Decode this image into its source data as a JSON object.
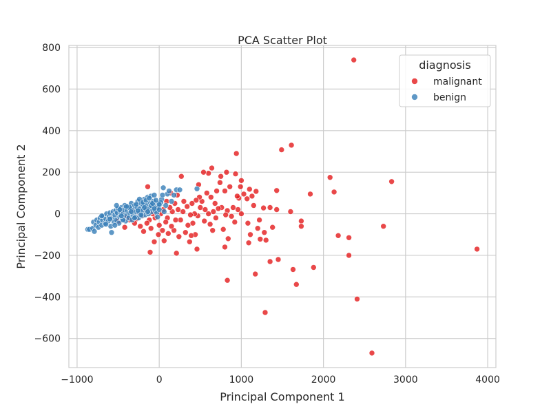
{
  "chart_data": {
    "type": "scatter",
    "title": "PCA Scatter Plot",
    "xlabel": "Principal Component 1",
    "ylabel": "Principal Component 2",
    "xlim": [
      -1100,
      4100
    ],
    "ylim": [
      -740,
      810
    ],
    "x_ticks": [
      -1000,
      0,
      1000,
      2000,
      3000,
      4000
    ],
    "y_ticks": [
      -600,
      -400,
      -200,
      0,
      200,
      400,
      600,
      800
    ],
    "x_tick_labels": [
      "−1000",
      "0",
      "1000",
      "2000",
      "3000",
      "4000"
    ],
    "y_tick_labels": [
      "−600",
      "−400",
      "−200",
      "0",
      "200",
      "400",
      "600",
      "800"
    ],
    "grid": true,
    "legend": {
      "title": "diagnosis",
      "placement": "top-right",
      "entries": [
        {
          "label": "malignant",
          "color": "#e41a1c"
        },
        {
          "label": "benign",
          "color": "#377eb8"
        }
      ]
    },
    "series": [
      {
        "name": "malignant",
        "color": "#e41a1c",
        "points": [
          [
            2370,
            740
          ],
          [
            2590,
            -670
          ],
          [
            3870,
            -170
          ],
          [
            2830,
            155
          ],
          [
            2730,
            -60
          ],
          [
            2410,
            -410
          ],
          [
            2310,
            -200
          ],
          [
            2310,
            -115
          ],
          [
            2180,
            -105
          ],
          [
            2130,
            105
          ],
          [
            2080,
            175
          ],
          [
            1880,
            -258
          ],
          [
            1840,
            95
          ],
          [
            1730,
            -35
          ],
          [
            1730,
            -60
          ],
          [
            1670,
            -340
          ],
          [
            1630,
            -268
          ],
          [
            1610,
            330
          ],
          [
            1600,
            10
          ],
          [
            1490,
            308
          ],
          [
            1450,
            -220
          ],
          [
            1430,
            112
          ],
          [
            1430,
            20
          ],
          [
            1380,
            -65
          ],
          [
            1350,
            -230
          ],
          [
            1350,
            30
          ],
          [
            1300,
            -127
          ],
          [
            1290,
            -475
          ],
          [
            1280,
            -90
          ],
          [
            1270,
            28
          ],
          [
            1230,
            -122
          ],
          [
            1220,
            -30
          ],
          [
            1200,
            -70
          ],
          [
            1180,
            108
          ],
          [
            1170,
            -290
          ],
          [
            1150,
            40
          ],
          [
            1130,
            85
          ],
          [
            1110,
            -100
          ],
          [
            1100,
            118
          ],
          [
            1090,
            -140
          ],
          [
            1080,
            -45
          ],
          [
            1070,
            72
          ],
          [
            1030,
            95
          ],
          [
            1000,
            0
          ],
          [
            1000,
            160
          ],
          [
            990,
            130
          ],
          [
            970,
            75
          ],
          [
            960,
            20
          ],
          [
            950,
            85
          ],
          [
            940,
            290
          ],
          [
            930,
            192
          ],
          [
            920,
            -40
          ],
          [
            900,
            30
          ],
          [
            880,
            -12
          ],
          [
            860,
            130
          ],
          [
            840,
            -120
          ],
          [
            830,
            -320
          ],
          [
            830,
            15
          ],
          [
            820,
            200
          ],
          [
            810,
            -5
          ],
          [
            800,
            -160
          ],
          [
            800,
            110
          ],
          [
            780,
            -75
          ],
          [
            760,
            30
          ],
          [
            750,
            180
          ],
          [
            740,
            150
          ],
          [
            720,
            25
          ],
          [
            700,
            110
          ],
          [
            690,
            -20
          ],
          [
            680,
            50
          ],
          [
            660,
            10
          ],
          [
            650,
            -80
          ],
          [
            640,
            220
          ],
          [
            630,
            80
          ],
          [
            620,
            -50
          ],
          [
            600,
            195
          ],
          [
            600,
            0
          ],
          [
            580,
            100
          ],
          [
            560,
            20
          ],
          [
            550,
            -35
          ],
          [
            540,
            200
          ],
          [
            520,
            60
          ],
          [
            500,
            30
          ],
          [
            490,
            80
          ],
          [
            480,
            140
          ],
          [
            470,
            -10
          ],
          [
            460,
            -170
          ],
          [
            450,
            65
          ],
          [
            440,
            -100
          ],
          [
            430,
            0
          ],
          [
            410,
            -45
          ],
          [
            400,
            50
          ],
          [
            390,
            -105
          ],
          [
            380,
            -5
          ],
          [
            370,
            -135
          ],
          [
            350,
            -55
          ],
          [
            340,
            35
          ],
          [
            320,
            -90
          ],
          [
            300,
            60
          ],
          [
            290,
            10
          ],
          [
            270,
            180
          ],
          [
            260,
            -30
          ],
          [
            240,
            -110
          ],
          [
            230,
            20
          ],
          [
            220,
            90
          ],
          [
            210,
            -190
          ],
          [
            200,
            -30
          ],
          [
            190,
            50
          ],
          [
            180,
            -80
          ],
          [
            160,
            10
          ],
          [
            150,
            -60
          ],
          [
            140,
            100
          ],
          [
            130,
            30
          ],
          [
            110,
            -95
          ],
          [
            100,
            -20
          ],
          [
            90,
            60
          ],
          [
            80,
            -40
          ],
          [
            60,
            -130
          ],
          [
            50,
            20
          ],
          [
            40,
            -80
          ],
          [
            20,
            0
          ],
          [
            0,
            -55
          ],
          [
            -10,
            -100
          ],
          [
            -30,
            30
          ],
          [
            -50,
            -20
          ],
          [
            -60,
            -135
          ],
          [
            -80,
            0
          ],
          [
            -100,
            -70
          ],
          [
            -110,
            -185
          ],
          [
            -120,
            -30
          ],
          [
            -140,
            130
          ],
          [
            -150,
            -45
          ],
          [
            -170,
            20
          ],
          [
            -190,
            -85
          ],
          [
            -200,
            -10
          ],
          [
            -230,
            -60
          ],
          [
            -250,
            0
          ],
          [
            -280,
            -25
          ],
          [
            -300,
            -45
          ],
          [
            -330,
            15
          ],
          [
            -360,
            -30
          ],
          [
            -400,
            -20
          ],
          [
            -420,
            -65
          ],
          [
            -460,
            10
          ],
          [
            -500,
            -35
          ]
        ]
      },
      {
        "name": "benign",
        "color": "#377eb8",
        "points": [
          [
            -870,
            -75
          ],
          [
            -850,
            -75
          ],
          [
            -810,
            -70
          ],
          [
            -800,
            -40
          ],
          [
            -790,
            -85
          ],
          [
            -770,
            -55
          ],
          [
            -760,
            -30
          ],
          [
            -740,
            -65
          ],
          [
            -730,
            -40
          ],
          [
            -720,
            -20
          ],
          [
            -700,
            -55
          ],
          [
            -690,
            -30
          ],
          [
            -680,
            -10
          ],
          [
            -660,
            -45
          ],
          [
            -650,
            -25
          ],
          [
            -640,
            0
          ],
          [
            -620,
            -35
          ],
          [
            -610,
            -15
          ],
          [
            -600,
            5
          ],
          [
            -590,
            -60
          ],
          [
            -580,
            -90
          ],
          [
            -570,
            -20
          ],
          [
            -560,
            10
          ],
          [
            -550,
            -40
          ],
          [
            -540,
            -5
          ],
          [
            -530,
            15
          ],
          [
            -520,
            -30
          ],
          [
            -510,
            5
          ],
          [
            -500,
            25
          ],
          [
            -490,
            -45
          ],
          [
            -480,
            -15
          ],
          [
            -470,
            10
          ],
          [
            -460,
            30
          ],
          [
            -450,
            -25
          ],
          [
            -440,
            0
          ],
          [
            -430,
            20
          ],
          [
            -420,
            40
          ],
          [
            -410,
            -35
          ],
          [
            -400,
            -10
          ],
          [
            -390,
            15
          ],
          [
            -380,
            35
          ],
          [
            -370,
            -20
          ],
          [
            -360,
            5
          ],
          [
            -350,
            25
          ],
          [
            -340,
            50
          ],
          [
            -330,
            -30
          ],
          [
            -320,
            -5
          ],
          [
            -310,
            20
          ],
          [
            -300,
            40
          ],
          [
            -290,
            -15
          ],
          [
            -280,
            10
          ],
          [
            -270,
            30
          ],
          [
            -260,
            60
          ],
          [
            -250,
            -20
          ],
          [
            -240,
            5
          ],
          [
            -230,
            25
          ],
          [
            -220,
            50
          ],
          [
            -210,
            -10
          ],
          [
            -200,
            15
          ],
          [
            -190,
            40
          ],
          [
            -180,
            70
          ],
          [
            -170,
            -5
          ],
          [
            -160,
            20
          ],
          [
            -150,
            45
          ],
          [
            -140,
            80
          ],
          [
            -130,
            0
          ],
          [
            -120,
            25
          ],
          [
            -110,
            55
          ],
          [
            -100,
            85
          ],
          [
            -90,
            10
          ],
          [
            -80,
            35
          ],
          [
            -70,
            60
          ],
          [
            -60,
            90
          ],
          [
            -50,
            15
          ],
          [
            -40,
            40
          ],
          [
            -30,
            5
          ],
          [
            -20,
            30
          ],
          [
            -10,
            50
          ],
          [
            0,
            20
          ],
          [
            10,
            45
          ],
          [
            30,
            70
          ],
          [
            50,
            125
          ],
          [
            60,
            10
          ],
          [
            80,
            40
          ],
          [
            100,
            95
          ],
          [
            120,
            110
          ],
          [
            150,
            60
          ],
          [
            180,
            90
          ],
          [
            210,
            115
          ],
          [
            250,
            115
          ],
          [
            460,
            120
          ],
          [
            -600,
            -25
          ],
          [
            -540,
            -55
          ],
          [
            -480,
            20
          ],
          [
            -440,
            -30
          ],
          [
            -360,
            30
          ],
          [
            -300,
            -20
          ],
          [
            -260,
            15
          ],
          [
            -220,
            -5
          ],
          [
            -180,
            30
          ],
          [
            -140,
            10
          ],
          [
            -100,
            40
          ],
          [
            -60,
            25
          ],
          [
            -20,
            -15
          ],
          [
            20,
            55
          ],
          [
            -650,
            -50
          ],
          [
            -700,
            -10
          ],
          [
            -520,
            40
          ],
          [
            -460,
            -10
          ],
          [
            -400,
            35
          ],
          [
            -340,
            10
          ],
          [
            -280,
            45
          ],
          [
            -240,
            70
          ],
          [
            -200,
            55
          ],
          [
            -160,
            65
          ],
          [
            -120,
            75
          ],
          [
            -80,
            50
          ],
          [
            -40,
            65
          ],
          [
            0,
            45
          ],
          [
            40,
            90
          ]
        ]
      }
    ]
  }
}
